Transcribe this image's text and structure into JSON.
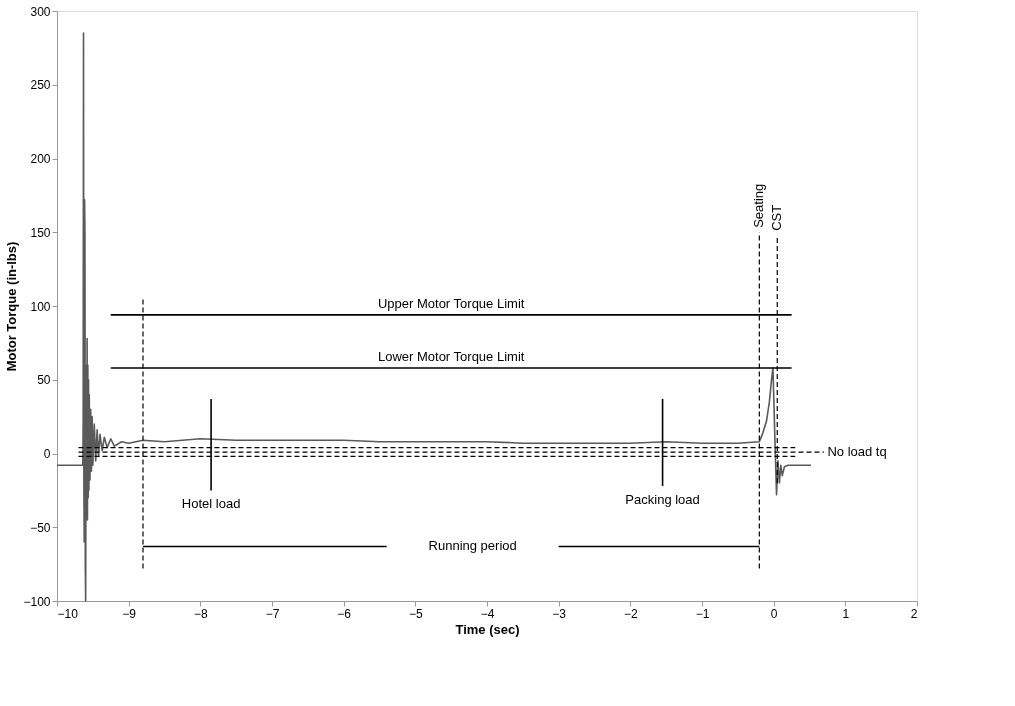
{
  "chart_data": {
    "type": "line",
    "xlabel": "Time (sec)",
    "ylabel": "Motor Torque (in-lbs)",
    "xlim": [
      -10,
      2
    ],
    "xticks": [
      -10,
      -9,
      -8,
      -7,
      -6,
      -5,
      -4,
      -3,
      -2,
      -1,
      0,
      1,
      2
    ],
    "ylim": [
      -100,
      300
    ],
    "yticks": [
      -100,
      -50,
      0,
      50,
      100,
      150,
      200,
      250,
      300
    ],
    "grid": false,
    "marker": "none",
    "series": [
      {
        "color": "#5a5a5a",
        "line_style": "solid",
        "x": [
          -10,
          -9.64,
          -9.635,
          -9.63,
          -9.625,
          -9.62,
          -9.615,
          -9.61,
          -9.605,
          -9.6,
          -9.595,
          -9.59,
          -9.585,
          -9.58,
          -9.575,
          -9.57,
          -9.565,
          -9.56,
          -9.555,
          -9.55,
          -9.54,
          -9.53,
          -9.52,
          -9.51,
          -9.5,
          -9.48,
          -9.46,
          -9.44,
          -9.42,
          -9.4,
          -9.37,
          -9.34,
          -9.3,
          -9.25,
          -9.2,
          -9.1,
          -9.0,
          -8.8,
          -8.5,
          -8,
          -7.5,
          -7,
          -6.5,
          -6,
          -5.5,
          -5,
          -4.5,
          -4,
          -3.5,
          -3,
          -2.5,
          -2,
          -1.5,
          -1,
          -0.5,
          -0.2,
          -0.15,
          -0.1,
          -0.06,
          -0.03,
          -0.01,
          0.02,
          0.04,
          0.06,
          0.08,
          0.1,
          0.12,
          0.15,
          0.2,
          0.52
        ],
        "values": [
          -8,
          -8,
          20,
          285,
          -20,
          -60,
          172,
          150,
          -75,
          -100,
          30,
          60,
          -40,
          78,
          -45,
          60,
          -30,
          50,
          -25,
          40,
          -18,
          30,
          -12,
          25,
          -8,
          20,
          -5,
          16,
          -2,
          13,
          2,
          11,
          4,
          10,
          5,
          8,
          7,
          9,
          8,
          10,
          9,
          9,
          9,
          9,
          8,
          8,
          8,
          8,
          7,
          7,
          7,
          7,
          8,
          7,
          7,
          8,
          14,
          22,
          35,
          50,
          58,
          5,
          -28,
          -5,
          -20,
          -8,
          -15,
          -9,
          -8,
          -8
        ]
      },
      {
        "color": "#000000",
        "line_style": "solid",
        "x": [
          -9.25,
          0.25
        ],
        "values": [
          94,
          94
        ]
      },
      {
        "color": "#000000",
        "line_style": "solid",
        "x": [
          -9.25,
          0.25
        ],
        "values": [
          58,
          58
        ]
      },
      {
        "color": "#000000",
        "line_style": "dashed",
        "x": [
          -9.7,
          0.3
        ],
        "values": [
          4,
          4
        ]
      },
      {
        "color": "#000000",
        "line_style": "dashed",
        "x": [
          -9.7,
          0.3
        ],
        "values": [
          -2,
          -2
        ]
      },
      {
        "color": "#000000",
        "line_style": "dashed",
        "x": [
          -9.7,
          0.7
        ],
        "values": [
          1,
          1
        ]
      },
      {
        "color": "#000000",
        "line_style": "dashed",
        "x": [
          -8.8,
          -8.8
        ],
        "values": [
          -78,
          105
        ]
      },
      {
        "color": "#000000",
        "line_style": "dashed",
        "x": [
          -0.2,
          -0.2
        ],
        "values": [
          -78,
          150
        ]
      },
      {
        "color": "#000000",
        "line_style": "dashed",
        "x": [
          0.05,
          0.05
        ],
        "values": [
          -20,
          148
        ]
      },
      {
        "color": "#000000",
        "line_style": "solid",
        "x": [
          -7.85,
          -7.85
        ],
        "values": [
          -25,
          37
        ]
      },
      {
        "color": "#000000",
        "line_style": "solid",
        "x": [
          -1.55,
          -1.55
        ],
        "values": [
          -22,
          37
        ]
      },
      {
        "color": "#000000",
        "line_style": "solid",
        "x": [
          -8.8,
          -5.4
        ],
        "values": [
          -63,
          -63
        ]
      },
      {
        "color": "#000000",
        "line_style": "solid",
        "x": [
          -3.0,
          -0.2
        ],
        "values": [
          -63,
          -63
        ]
      }
    ],
    "annotations": [
      "Upper Motor Torque Limit",
      "Lower Motor Torque Limit",
      "Hotel load",
      "Packing load",
      "Running period",
      {
        "text": "Seating",
        "x": -0.2,
        "y": 153
      },
      {
        "text": "CST",
        "x": 0.05,
        "y": 151
      },
      {
        "text": "No load tq",
        "x": 0.75,
        "y": 1
      }
    ]
  }
}
